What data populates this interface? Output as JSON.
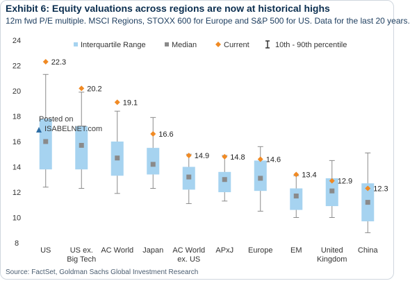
{
  "title": "Exhibit 6: Equity valuations across regions are now at historical highs",
  "subtitle": "12m fwd P/E multiple. MSCI Regions, STOXX 600 for Europe and S&P 500 for US. Data for the last 20 years.",
  "source": "Source: FactSet, Goldman Sachs Global Investment Research",
  "watermark": {
    "line1": "Posted on",
    "line2": "ISABELNET.com"
  },
  "colors": {
    "box": "#a6d3f0",
    "median": "#8a8a8a",
    "current": "#f08a24",
    "whisker": "#8a8a8a",
    "axis_text": "#333333"
  },
  "chart_data": {
    "type": "box",
    "ylim": [
      8,
      24
    ],
    "yticks": [
      8,
      10,
      12,
      14,
      16,
      18,
      20,
      22,
      24
    ],
    "grid": false,
    "legend_position": "top",
    "legend": [
      "Interquartile Range",
      "Median",
      "Current",
      "10th - 90th percentile"
    ],
    "categories": [
      {
        "label": "US",
        "p10": 12.4,
        "q1": 13.8,
        "median": 16.0,
        "q3": 17.8,
        "p90": 21.3,
        "current": 22.3,
        "current_label": "22.3"
      },
      {
        "label": "US ex. Big Tech",
        "p10": 12.3,
        "q1": 13.8,
        "median": 15.7,
        "q3": 17.2,
        "p90": 19.9,
        "current": 20.2,
        "current_label": "20.2"
      },
      {
        "label": "AC World",
        "p10": 11.9,
        "q1": 13.3,
        "median": 14.7,
        "q3": 16.0,
        "p90": 18.4,
        "current": 19.1,
        "current_label": "19.1"
      },
      {
        "label": "Japan",
        "p10": 12.3,
        "q1": 13.4,
        "median": 14.2,
        "q3": 15.5,
        "p90": 17.9,
        "current": 16.6,
        "current_label": "16.6"
      },
      {
        "label": "AC World ex. US",
        "p10": 11.1,
        "q1": 12.2,
        "median": 13.2,
        "q3": 14.0,
        "p90": 15.0,
        "current": 14.9,
        "current_label": "14.9"
      },
      {
        "label": "APxJ",
        "p10": 11.3,
        "q1": 12.0,
        "median": 13.0,
        "q3": 13.6,
        "p90": 14.9,
        "current": 14.8,
        "current_label": "14.8"
      },
      {
        "label": "Europe",
        "p10": 10.5,
        "q1": 12.1,
        "median": 13.1,
        "q3": 14.5,
        "p90": 15.6,
        "current": 14.6,
        "current_label": "14.6"
      },
      {
        "label": "EM",
        "p10": 10.0,
        "q1": 10.6,
        "median": 11.7,
        "q3": 12.3,
        "p90": 13.3,
        "current": 13.4,
        "current_label": "13.4"
      },
      {
        "label": "United Kingdom",
        "p10": 10.0,
        "q1": 10.9,
        "median": 12.1,
        "q3": 13.1,
        "p90": 14.5,
        "current": 12.9,
        "current_label": "12.9"
      },
      {
        "label": "China",
        "p10": 8.8,
        "q1": 9.7,
        "median": 11.2,
        "q3": 12.7,
        "p90": 15.1,
        "current": 12.3,
        "current_label": "12.3"
      }
    ]
  }
}
